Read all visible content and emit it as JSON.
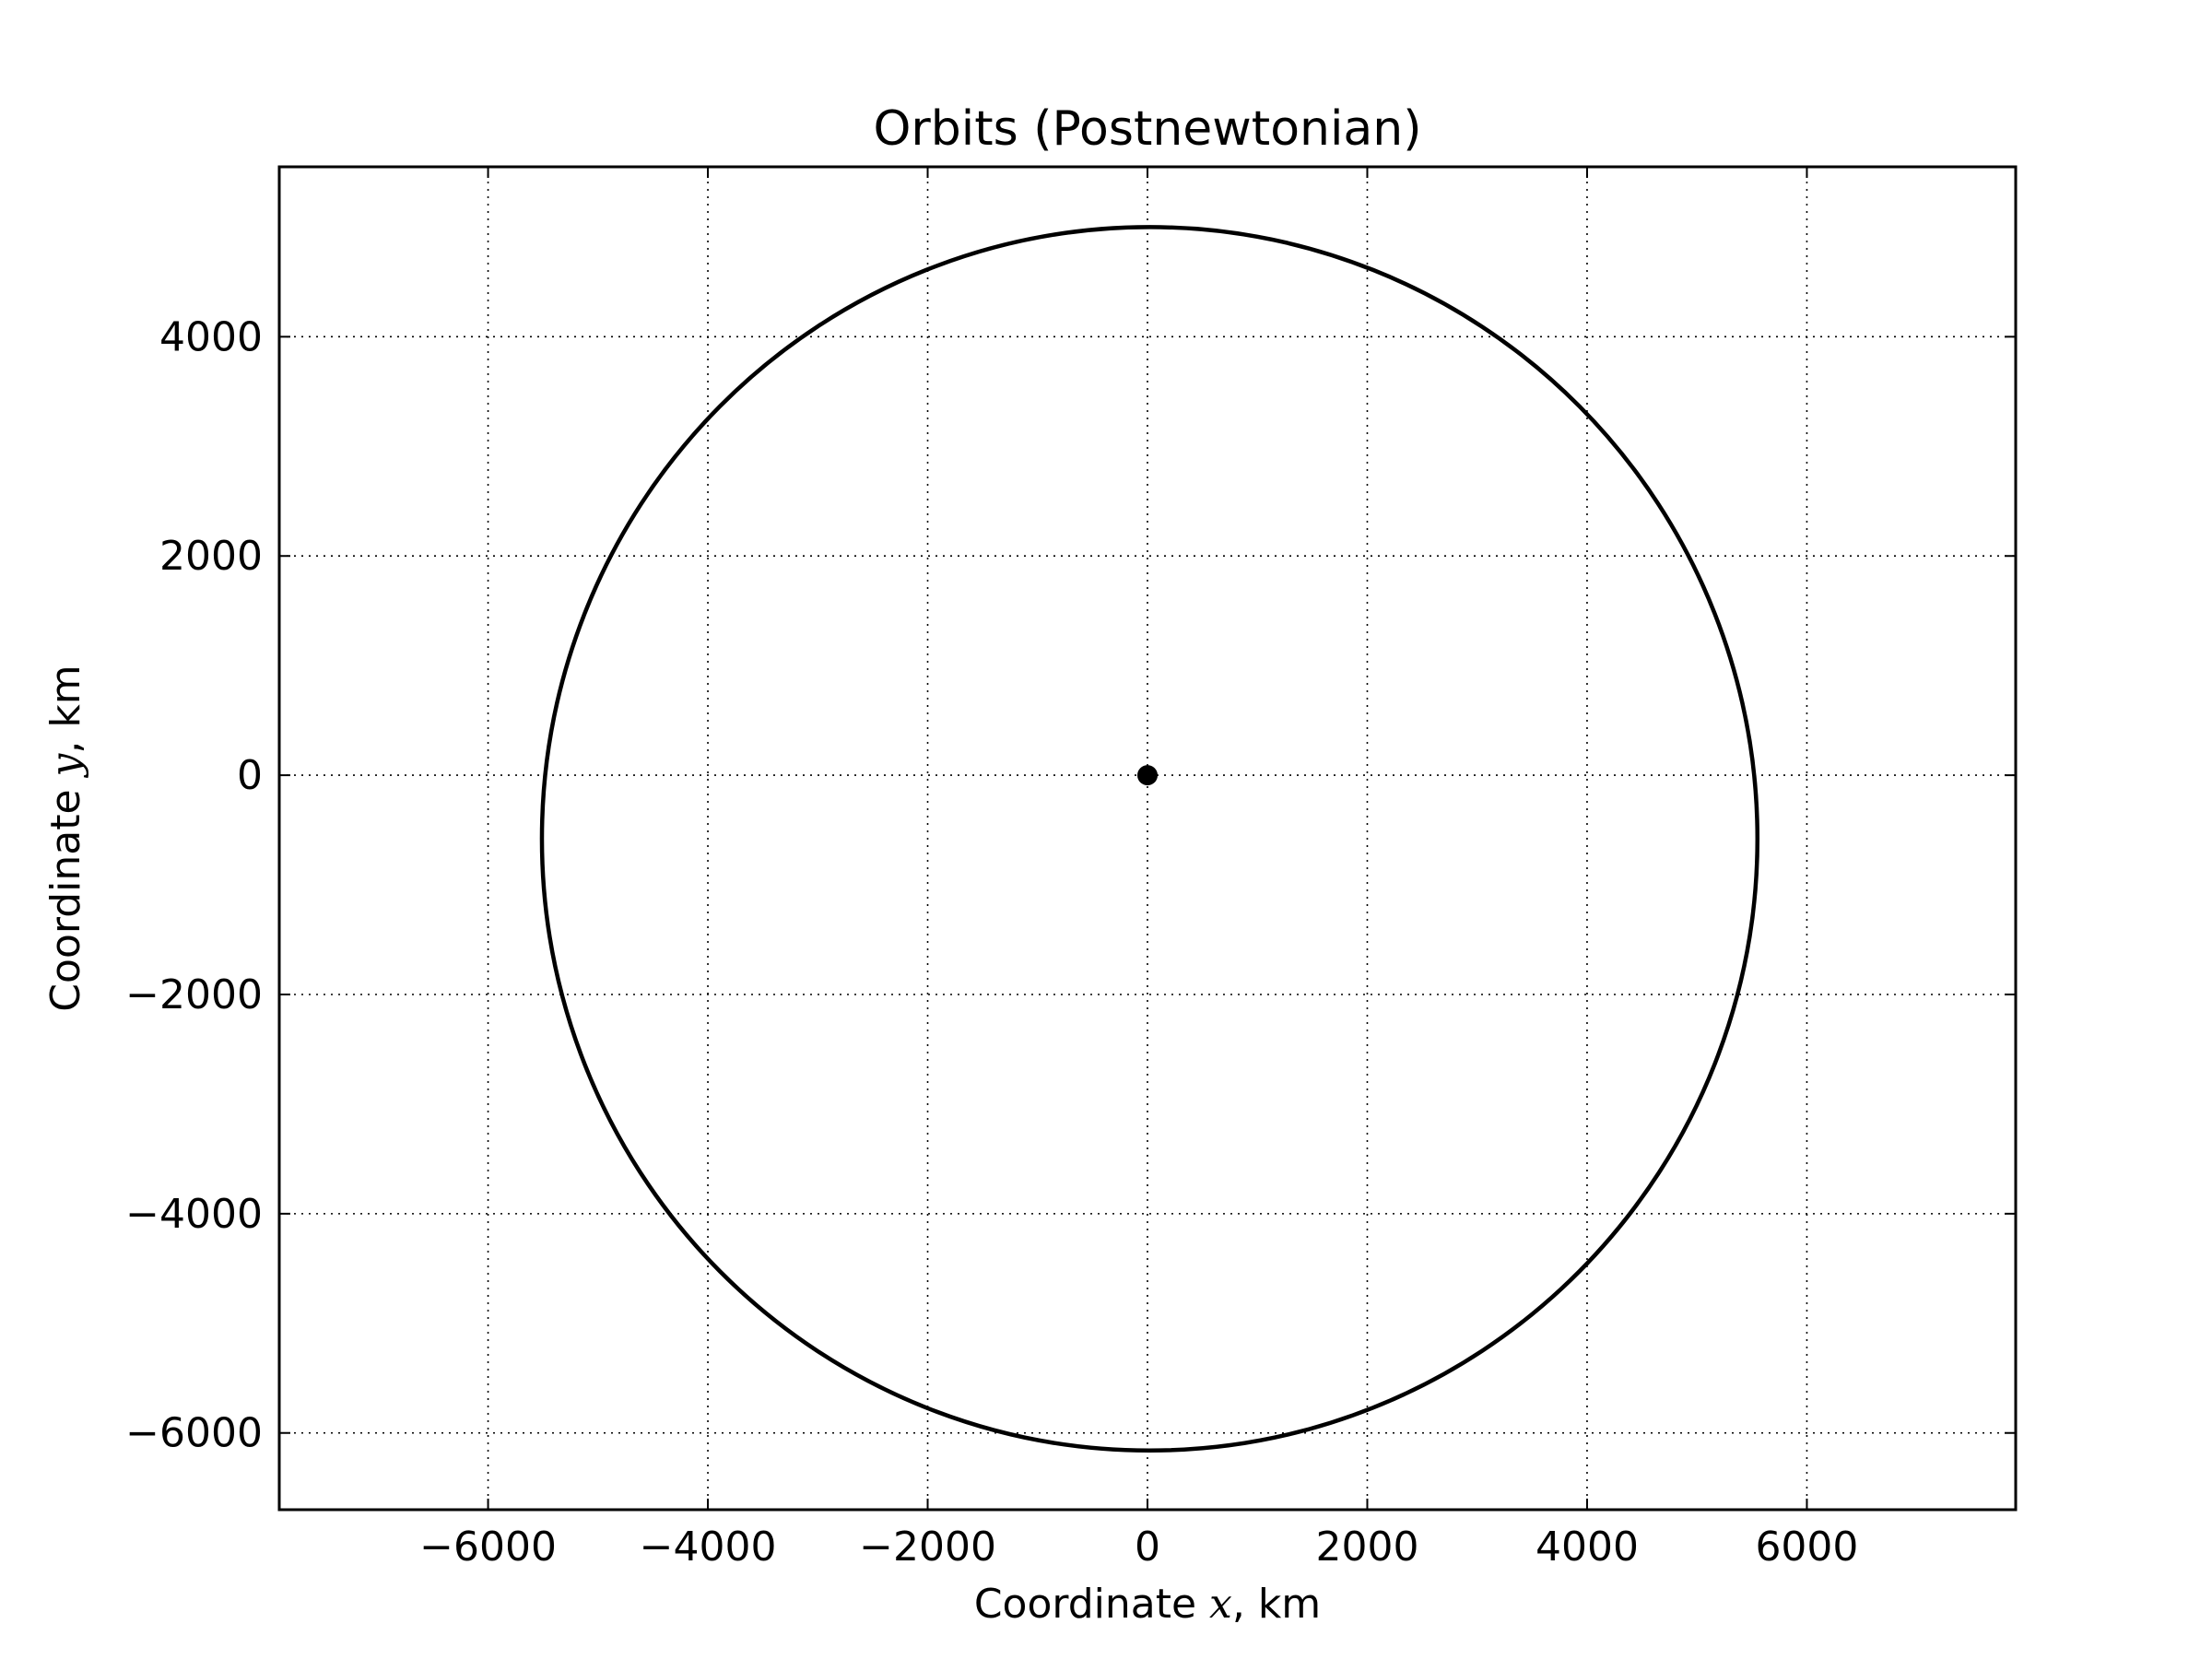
{
  "chart_data": {
    "type": "line",
    "title": "Orbits (Postnewtonian)",
    "xlabel": {
      "prefix": "Coordinate ",
      "var": "x",
      "suffix": ", km"
    },
    "ylabel": {
      "prefix": "Coordinate ",
      "var": "y",
      "suffix": ", km"
    },
    "xlim": [
      -7900,
      7900
    ],
    "ylim": [
      -6700,
      5550
    ],
    "xticks": [
      -6000,
      -4000,
      -2000,
      0,
      2000,
      4000,
      6000
    ],
    "yticks": [
      -6000,
      -4000,
      -2000,
      0,
      2000,
      4000
    ],
    "xtick_labels": [
      "−6000",
      "−4000",
      "−2000",
      "0",
      "2000",
      "4000",
      "6000"
    ],
    "ytick_labels": [
      "−6000",
      "−4000",
      "−2000",
      "0",
      "2000",
      "4000"
    ],
    "grid": true,
    "grid_style": "dotted",
    "series": [
      {
        "kind": "orbit",
        "color": "#000000",
        "center": [
          20,
          -580
        ],
        "semi_axes": [
          5530,
          5580
        ]
      }
    ],
    "central_body": {
      "x": 0,
      "y": 0,
      "color": "#000000"
    }
  }
}
